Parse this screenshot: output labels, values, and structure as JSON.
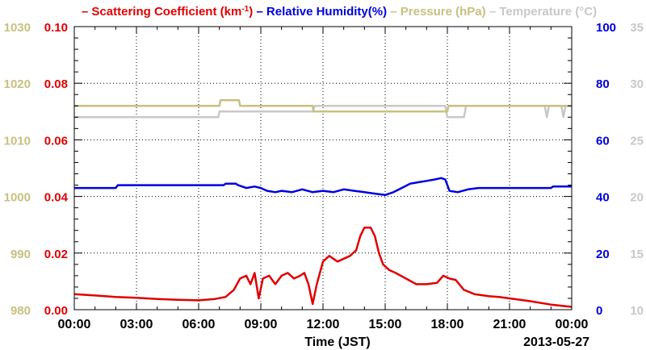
{
  "chart_data": {
    "type": "line",
    "date": "2013-05-27",
    "xlabel": "Time (JST)",
    "x_ticks": [
      "00:00",
      "03:00",
      "06:00",
      "09:00",
      "12:00",
      "15:00",
      "18:00",
      "21:00",
      "00:00"
    ],
    "xlim_hours": [
      0,
      24
    ],
    "grid": true,
    "legend": {
      "placement": "top",
      "entries": [
        {
          "prefix": "– ",
          "text": "Scattering Coefficient (km",
          "sup": "-1",
          "suffix": ")",
          "color": "#e00000"
        },
        {
          "prefix": " – ",
          "text": "Relative Humidity(%)",
          "color": "#0000e0"
        },
        {
          "prefix": " – ",
          "text": "Pressure (hPa)",
          "color": "#c8c080"
        },
        {
          "prefix": " – ",
          "text": "Temperature (°C)",
          "color": "#c8c8c8"
        }
      ]
    },
    "axes": [
      {
        "name": "pressure",
        "side": "left-outer",
        "color": "#c8c080",
        "range": [
          980,
          1030
        ],
        "ticks": [
          "980",
          "990",
          "1000",
          "1010",
          "1020",
          "1030"
        ]
      },
      {
        "name": "scattering",
        "side": "left-inner",
        "color": "#e00000",
        "range": [
          0,
          0.1
        ],
        "ticks": [
          "0.00",
          "0.02",
          "0.04",
          "0.06",
          "0.08",
          "0.10"
        ]
      },
      {
        "name": "humidity",
        "side": "right-inner",
        "color": "#0000e0",
        "range": [
          0,
          100
        ],
        "ticks": [
          "0",
          "20",
          "40",
          "60",
          "80",
          "100"
        ]
      },
      {
        "name": "temperature",
        "side": "right-outer",
        "color": "#c8c8c8",
        "range": [
          10,
          35
        ],
        "ticks": [
          "10",
          "15",
          "20",
          "25",
          "30",
          "35"
        ]
      }
    ],
    "series": [
      {
        "name": "Scattering Coefficient",
        "axis": "scattering",
        "color": "#e00000",
        "points": [
          [
            0,
            0.0055
          ],
          [
            1,
            0.005
          ],
          [
            2,
            0.0045
          ],
          [
            3,
            0.0042
          ],
          [
            4,
            0.0038
          ],
          [
            5,
            0.0035
          ],
          [
            6,
            0.0033
          ],
          [
            6.8,
            0.0038
          ],
          [
            7.3,
            0.0045
          ],
          [
            7.7,
            0.007
          ],
          [
            8.0,
            0.011
          ],
          [
            8.3,
            0.012
          ],
          [
            8.5,
            0.009
          ],
          [
            8.7,
            0.013
          ],
          [
            8.9,
            0.004
          ],
          [
            9.1,
            0.011
          ],
          [
            9.4,
            0.012
          ],
          [
            9.7,
            0.009
          ],
          [
            10.0,
            0.012
          ],
          [
            10.3,
            0.013
          ],
          [
            10.6,
            0.011
          ],
          [
            10.9,
            0.012
          ],
          [
            11.1,
            0.013
          ],
          [
            11.3,
            0.009
          ],
          [
            11.5,
            0.002
          ],
          [
            11.7,
            0.009
          ],
          [
            12.0,
            0.017
          ],
          [
            12.3,
            0.019
          ],
          [
            12.7,
            0.017
          ],
          [
            13.0,
            0.018
          ],
          [
            13.3,
            0.019
          ],
          [
            13.6,
            0.021
          ],
          [
            13.8,
            0.026
          ],
          [
            14.0,
            0.029
          ],
          [
            14.3,
            0.029
          ],
          [
            14.5,
            0.026
          ],
          [
            14.7,
            0.02
          ],
          [
            14.9,
            0.016
          ],
          [
            15.2,
            0.014
          ],
          [
            15.5,
            0.013
          ],
          [
            16.0,
            0.011
          ],
          [
            16.5,
            0.009
          ],
          [
            17.0,
            0.009
          ],
          [
            17.5,
            0.0095
          ],
          [
            17.8,
            0.012
          ],
          [
            18.1,
            0.011
          ],
          [
            18.4,
            0.0105
          ],
          [
            18.8,
            0.007
          ],
          [
            19.3,
            0.0055
          ],
          [
            20.0,
            0.0048
          ],
          [
            20.5,
            0.0045
          ],
          [
            21.0,
            0.004
          ],
          [
            22.0,
            0.003
          ],
          [
            23.0,
            0.0018
          ],
          [
            24.0,
            0.001
          ]
        ]
      },
      {
        "name": "Relative Humidity",
        "axis": "humidity",
        "color": "#0000e0",
        "points": [
          [
            0,
            43
          ],
          [
            2,
            43
          ],
          [
            2.1,
            44
          ],
          [
            7.2,
            44
          ],
          [
            7.3,
            44.5
          ],
          [
            7.8,
            44.5
          ],
          [
            7.9,
            44
          ],
          [
            8.3,
            43
          ],
          [
            8.7,
            43.5
          ],
          [
            9.0,
            43
          ],
          [
            9.3,
            42
          ],
          [
            9.7,
            41.5
          ],
          [
            10.0,
            42
          ],
          [
            10.5,
            41.5
          ],
          [
            11.0,
            42.5
          ],
          [
            11.5,
            41.5
          ],
          [
            12.0,
            42
          ],
          [
            12.5,
            41.5
          ],
          [
            13.0,
            42.5
          ],
          [
            13.5,
            42
          ],
          [
            14.0,
            41.5
          ],
          [
            14.5,
            41
          ],
          [
            15.0,
            40.5
          ],
          [
            15.4,
            41.5
          ],
          [
            15.8,
            43
          ],
          [
            16.2,
            44.5
          ],
          [
            16.6,
            45
          ],
          [
            17.0,
            45.5
          ],
          [
            17.4,
            46
          ],
          [
            17.7,
            46.5
          ],
          [
            17.9,
            46
          ],
          [
            18.1,
            42
          ],
          [
            18.5,
            41.5
          ],
          [
            19.0,
            42.5
          ],
          [
            19.5,
            43
          ],
          [
            23.0,
            43
          ],
          [
            23.1,
            43.5
          ],
          [
            24.0,
            43.5
          ]
        ]
      },
      {
        "name": "Pressure",
        "axis": "pressure",
        "color": "#c8c080",
        "points": [
          [
            0,
            1016
          ],
          [
            7.0,
            1016
          ],
          [
            7.05,
            1017
          ],
          [
            7.95,
            1017
          ],
          [
            8.0,
            1016
          ],
          [
            11.5,
            1016
          ],
          [
            11.55,
            1015
          ],
          [
            18.0,
            1015
          ],
          [
            18.05,
            1016
          ],
          [
            24.0,
            1016
          ]
        ]
      },
      {
        "name": "Temperature",
        "axis": "temperature",
        "color": "#c8c8c8",
        "points": [
          [
            0,
            27
          ],
          [
            6.95,
            27
          ],
          [
            7.0,
            27.5
          ],
          [
            11.5,
            27.5
          ],
          [
            11.6,
            28
          ],
          [
            17.9,
            28
          ],
          [
            18.0,
            27
          ],
          [
            18.8,
            27
          ],
          [
            18.9,
            28
          ],
          [
            22.7,
            28
          ],
          [
            22.8,
            27
          ],
          [
            22.9,
            28
          ],
          [
            23.5,
            28
          ],
          [
            23.6,
            27
          ],
          [
            23.7,
            28
          ],
          [
            24.0,
            28
          ]
        ]
      }
    ]
  }
}
